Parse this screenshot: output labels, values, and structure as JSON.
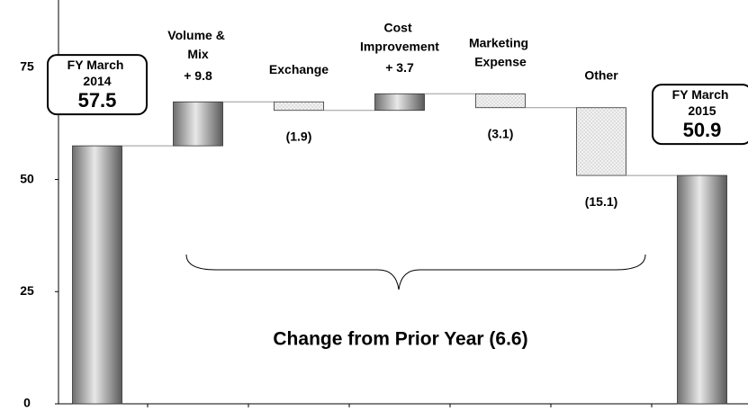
{
  "chart_data": {
    "type": "waterfall",
    "categories": [
      "FY March 2014",
      "Volume & Mix",
      "Exchange",
      "Cost Improvement",
      "Marketing Expense",
      "Other",
      "FY March 2015"
    ],
    "values": [
      57.5,
      9.8,
      -1.9,
      3.7,
      -3.1,
      -15.1,
      50.9
    ],
    "value_labels": [
      "57.5",
      "+ 9.8",
      "(1.9)",
      "+ 3.7",
      "(3.1)",
      "(15.1)",
      "50.9"
    ],
    "is_total": [
      true,
      false,
      false,
      false,
      false,
      false,
      true
    ],
    "annotation": "Change from Prior Year (6.6)",
    "ylim": [
      0,
      90
    ],
    "yticks": [
      0,
      25,
      50,
      75
    ],
    "grid": false
  }
}
